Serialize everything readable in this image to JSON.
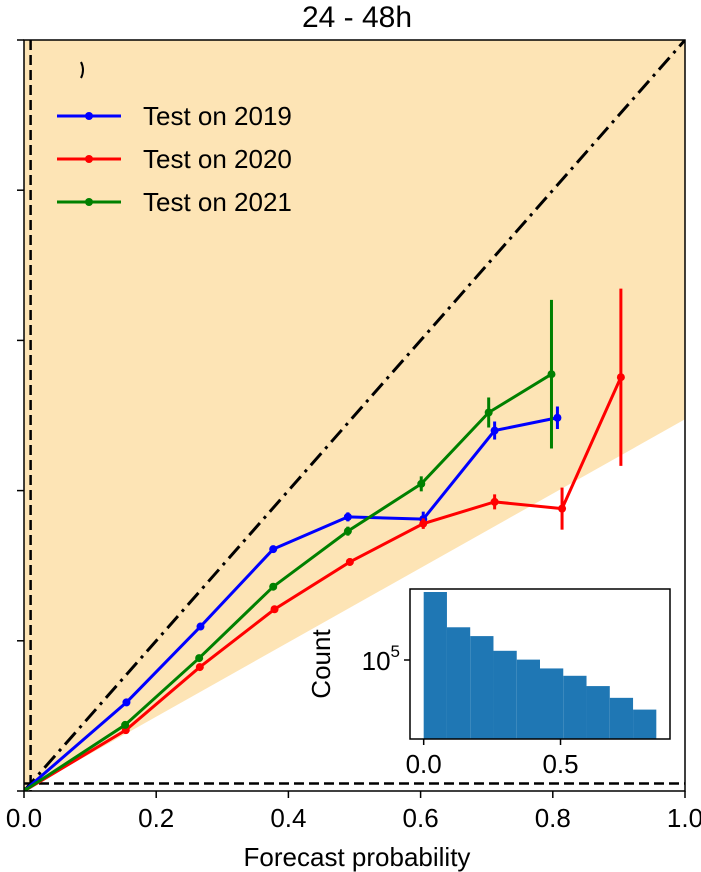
{
  "chart_data": {
    "type": "line",
    "title": "24 - 48h",
    "xlabel": "Forecast probability",
    "ylabel": "",
    "xlim": [
      0,
      1.0
    ],
    "ylim": [
      0,
      1.0
    ],
    "xticks": [
      "0.0",
      "0.2",
      "0.4",
      "0.6",
      "0.8",
      "1.0"
    ],
    "yticks_count": 6,
    "legend_position": "top-left",
    "grid": false,
    "colors": {
      "skill_region": "#fde4b5",
      "Test on 2019": "#0000ff",
      "Test on 2020": "#ff0000",
      "Test on 2021": "#008000",
      "inset_bars": "#1f77b4"
    },
    "reference_lines": [
      {
        "kind": "perfect-reliability",
        "style": "dash-dot"
      },
      {
        "kind": "climatology-vertical",
        "style": "dashed",
        "x": 0.01
      },
      {
        "kind": "climatology-horizontal",
        "style": "dashed",
        "y": 0.01
      }
    ],
    "series": [
      {
        "name": "Test on 2019",
        "x": [
          0.0,
          0.155,
          0.267,
          0.377,
          0.49,
          0.604,
          0.712,
          0.807
        ],
        "y": [
          0.0,
          0.118,
          0.219,
          0.322,
          0.365,
          0.362,
          0.48,
          0.497
        ],
        "yerr": [
          0.0,
          0.004,
          0.004,
          0.004,
          0.006,
          0.01,
          0.012,
          0.015
        ]
      },
      {
        "name": "Test on 2020",
        "x": [
          0.0,
          0.154,
          0.266,
          0.379,
          0.493,
          0.604,
          0.712,
          0.814,
          0.903
        ],
        "y": [
          0.0,
          0.081,
          0.165,
          0.242,
          0.305,
          0.356,
          0.385,
          0.376,
          0.551
        ],
        "yerr": [
          0.0,
          0.003,
          0.004,
          0.004,
          0.005,
          0.007,
          0.01,
          0.028,
          0.118
        ]
      },
      {
        "name": "Test on 2021",
        "x": [
          0.0,
          0.153,
          0.265,
          0.377,
          0.49,
          0.601,
          0.703,
          0.798
        ],
        "y": [
          0.0,
          0.088,
          0.177,
          0.272,
          0.346,
          0.409,
          0.504,
          0.555
        ],
        "yerr": [
          0.0,
          0.003,
          0.004,
          0.004,
          0.006,
          0.01,
          0.02,
          0.099
        ]
      }
    ],
    "inset": {
      "type": "bar",
      "ylabel": "Count",
      "yscale": "log",
      "ytick_label": "10^5",
      "xticks": [
        "0.0",
        "0.5"
      ],
      "xlim": [
        -0.05,
        0.9
      ],
      "bin_width": 0.085,
      "bin_starts": [
        0.0,
        0.085,
        0.17,
        0.255,
        0.34,
        0.425,
        0.51,
        0.595,
        0.68,
        0.765
      ],
      "relative_heights": [
        1.0,
        0.76,
        0.7,
        0.6,
        0.54,
        0.48,
        0.43,
        0.36,
        0.28,
        0.2
      ]
    }
  }
}
